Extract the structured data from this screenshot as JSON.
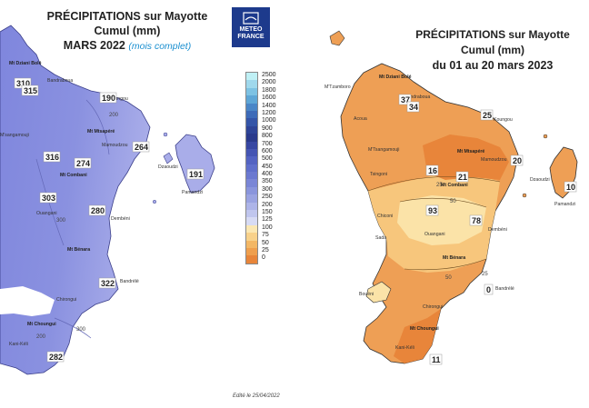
{
  "left_panel": {
    "title_line1": "PRÉCIPITATIONS sur Mayotte",
    "title_line2": "Cumul (mm)",
    "title_line3": "MARS 2022",
    "title_note": "(mois complet)",
    "values": [
      "310",
      "315",
      "190",
      "264",
      "316",
      "274",
      "191",
      "303",
      "280",
      "322",
      "282"
    ],
    "places": [
      "Mt Dziani Bolé",
      "Bandraboua",
      "Koungou",
      "M'sangamouji",
      "Mt Mtsapéré",
      "Mamoudzou",
      "Mt Combani",
      "Dzaoudzi",
      "Pamandzi",
      "Dembéni",
      "Mt Bénara",
      "Bandrélé",
      "Chirongui",
      "Mt Choungui",
      "Kani-Kéli",
      "Ouangani"
    ],
    "iso_labels": [
      "200",
      "300",
      "300",
      "200"
    ]
  },
  "right_panel": {
    "title_line1": "PRÉCIPITATIONS sur Mayotte",
    "title_line2": "Cumul (mm)",
    "title_line3": "du 01 au 20 mars 2023",
    "values": [
      "37",
      "34",
      "25",
      "16",
      "21",
      "20",
      "10",
      "93",
      "78",
      "0",
      "11"
    ],
    "places": [
      "Mt Dziani Bolé",
      "M'Tzamboro",
      "Bandraboua",
      "Koungou",
      "Acoua",
      "M'Tsangamouji",
      "Mt Mtsapéré",
      "Mamoudzou",
      "Dzaoudzi",
      "Pamandzi",
      "Tsingoni",
      "Mt Combani",
      "Chiconi",
      "Ouangani",
      "Dembéni",
      "Sada",
      "Mt Bénara",
      "Bandrélé",
      "Bouéni",
      "Chirongui",
      "Mt Choungui",
      "Kani-Kéli"
    ],
    "iso_labels": [
      "25",
      "50",
      "50",
      "25"
    ]
  },
  "logo": {
    "line1": "METEO",
    "line2": "FRANCE"
  },
  "legend": {
    "labels": [
      "2500",
      "2000",
      "1800",
      "1600",
      "1400",
      "1200",
      "1000",
      "900",
      "800",
      "700",
      "600",
      "500",
      "450",
      "400",
      "350",
      "300",
      "250",
      "200",
      "150",
      "125",
      "100",
      "75",
      "50",
      "25",
      "0"
    ],
    "colors": [
      "#bff0f5",
      "#9fd8ec",
      "#7dc2e3",
      "#5ea6d6",
      "#4a86c7",
      "#3d6bb8",
      "#3455a8",
      "#2e4497",
      "#2a3a8c",
      "#3747a2",
      "#4555b3",
      "#5363c2",
      "#5f6fcb",
      "#6b79d0",
      "#7a86d6",
      "#8a95dc",
      "#9aa3e1",
      "#adb4e8",
      "#c0c6ee",
      "#d7dbf4",
      "#fbe7b2",
      "#f8d18a",
      "#f3b765",
      "#ef9f4e",
      "#e8853a"
    ]
  },
  "edit_note": "Edité le 25/04/2022"
}
